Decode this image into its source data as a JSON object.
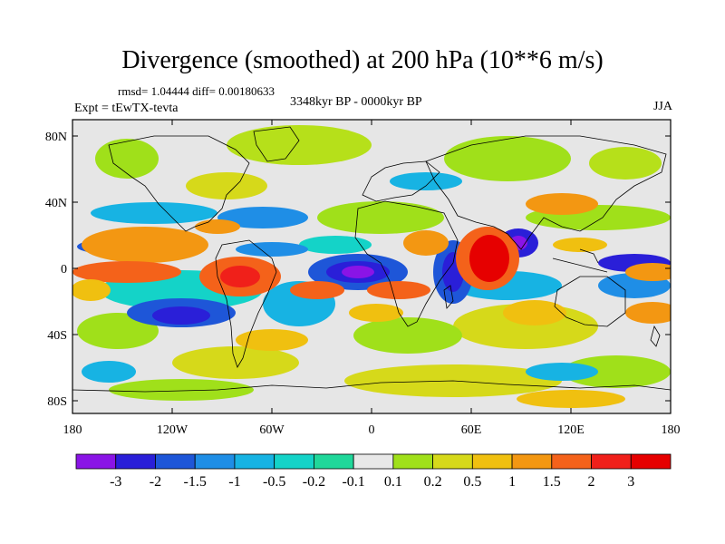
{
  "title": "Divergence (smoothed) at 200 hPa (10**6 m/s)",
  "stats": "rmsd= 1.04444 diff= 0.00180633",
  "experiment": "Expt = tEwTX-tevta",
  "period": "3348kyr BP - 0000kyr BP",
  "season": "JJA",
  "map": {
    "lat_ticks": [
      "80N",
      "40N",
      "0",
      "40S",
      "80S"
    ],
    "lon_ticks": [
      "180",
      "120W",
      "60W",
      "0",
      "60E",
      "120E",
      "180"
    ],
    "background_color": "#e6e6e6",
    "coastline_color": "#000000"
  },
  "colorbar": {
    "labels": [
      "-3",
      "-2",
      "-1.5",
      "-1",
      "-0.5",
      "-0.2",
      "-0.1",
      "0.1",
      "0.2",
      "0.5",
      "1",
      "1.5",
      "2",
      "3"
    ],
    "colors": [
      "#8a14e6",
      "#2a1fd8",
      "#1e56d8",
      "#1f8ee6",
      "#17b3e3",
      "#14d3c8",
      "#20d79a",
      "#e8e8e8",
      "#a0e01a",
      "#d6d91a",
      "#f0c010",
      "#f39712",
      "#f4621a",
      "#f0201a",
      "#e60000"
    ]
  }
}
